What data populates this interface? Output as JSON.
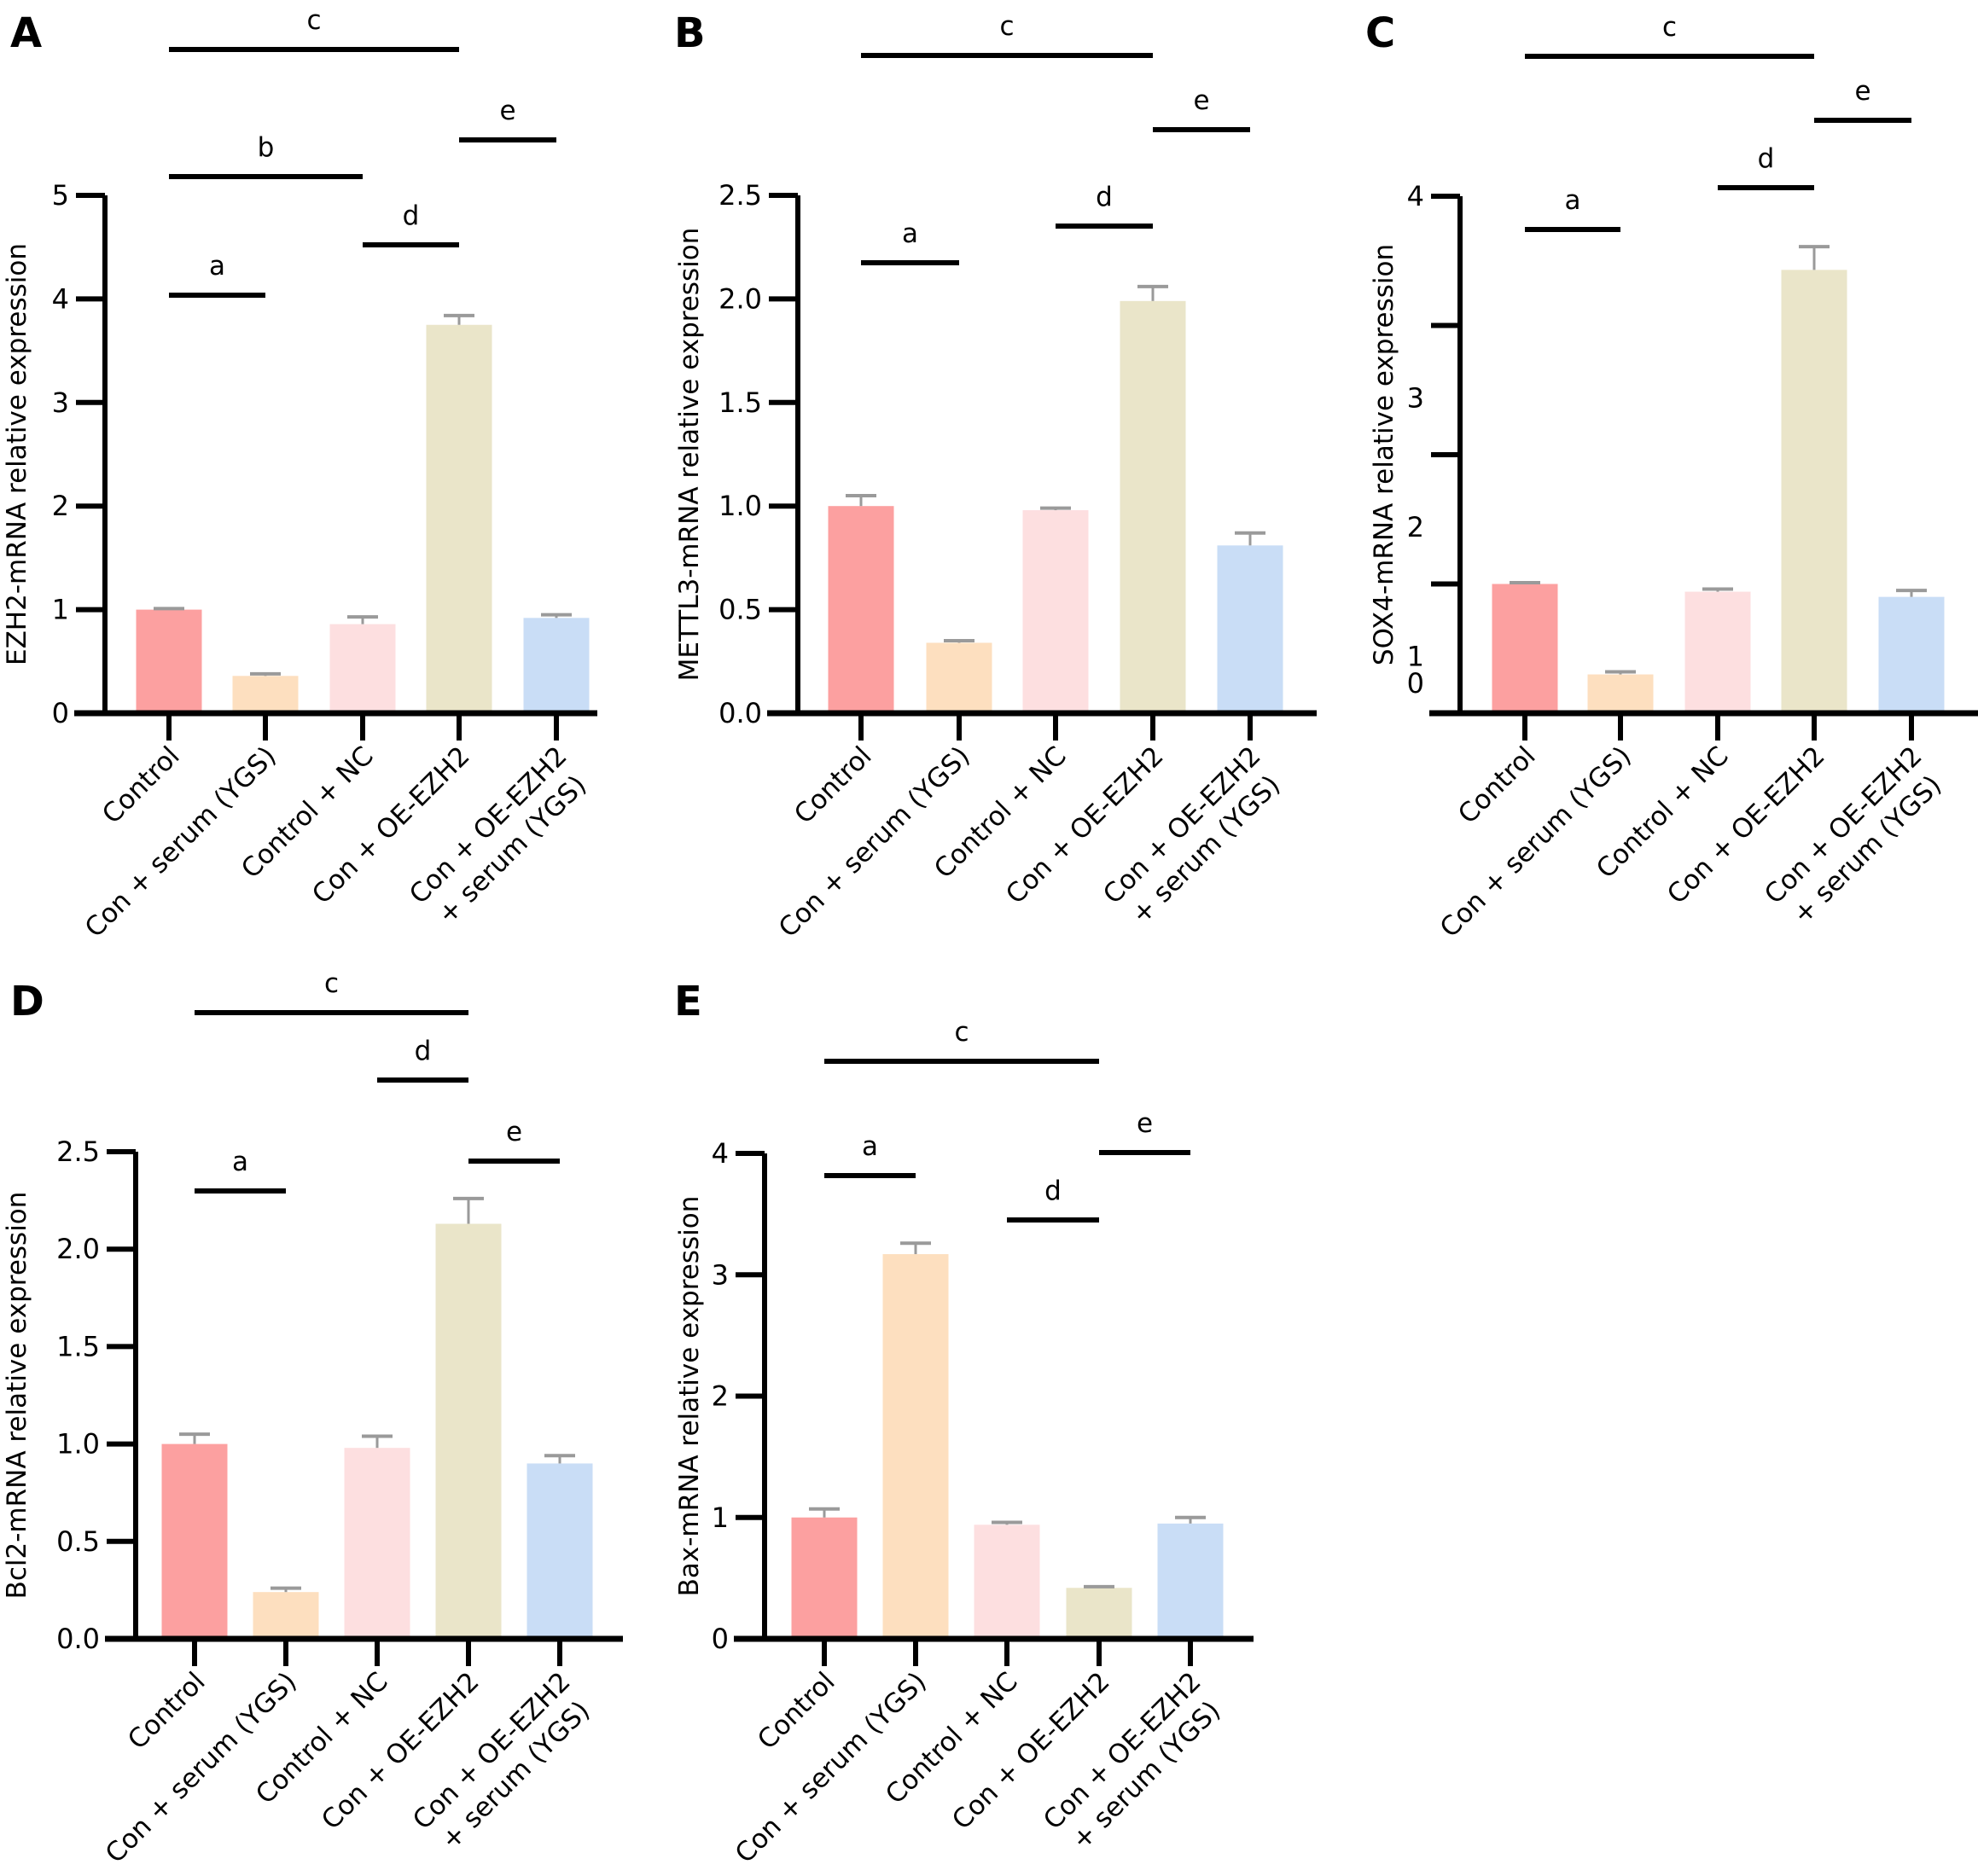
{
  "colors": {
    "bars": [
      "#FCA0A0",
      "#FDDFBF",
      "#FDDFE0",
      "#EAE5C9",
      "#C9DDF6"
    ],
    "error_bar": "#9A9A9A",
    "axis": "#000000"
  },
  "chart_data": [
    {
      "panel": "A",
      "type": "bar",
      "title": "",
      "xlabel": "",
      "ylabel": "EZH2-mRNA relative expression",
      "categories": [
        "Control",
        "Con + serum (YGS)",
        "Control + NC",
        "Con + OE-EZH2",
        "Con + OE-EZH2\n+ serum (YGS)"
      ],
      "values": [
        1.0,
        0.36,
        0.86,
        3.75,
        0.92
      ],
      "error_upper": [
        1.01,
        0.38,
        0.93,
        3.84,
        0.95
      ],
      "ylim": [
        0,
        5
      ],
      "yticks": [
        0,
        1,
        2,
        3,
        4,
        5
      ],
      "ytick_labels": [
        "0",
        "1",
        "2",
        "3",
        "4",
        "5"
      ],
      "grid": false,
      "significance": [
        {
          "label": "c",
          "from": 0,
          "to": 3,
          "level": "top"
        },
        {
          "label": "e",
          "from": 3,
          "to": 4
        },
        {
          "label": "b",
          "from": 0,
          "to": 2
        },
        {
          "label": "d",
          "from": 2,
          "to": 3
        },
        {
          "label": "a",
          "from": 0,
          "to": 1
        }
      ]
    },
    {
      "panel": "B",
      "type": "bar",
      "title": "",
      "xlabel": "",
      "ylabel": "METTL3-mRNA relative expression",
      "categories": [
        "Control",
        "Con + serum (YGS)",
        "Control + NC",
        "Con + OE-EZH2",
        "Con + OE-EZH2\n+ serum (YGS)"
      ],
      "values": [
        1.0,
        0.34,
        0.98,
        1.99,
        0.81
      ],
      "error_upper": [
        1.05,
        0.35,
        0.99,
        2.06,
        0.87
      ],
      "ylim": [
        0,
        2.5
      ],
      "yticks": [
        0,
        0.5,
        1.0,
        1.5,
        2.0,
        2.5
      ],
      "ytick_labels": [
        "0.0",
        "0.5",
        "1.0",
        "1.5",
        "2.0",
        "2.5"
      ],
      "grid": false,
      "significance": [
        {
          "label": "c",
          "from": 0,
          "to": 3
        },
        {
          "label": "e",
          "from": 3,
          "to": 4
        },
        {
          "label": "d",
          "from": 2,
          "to": 3
        },
        {
          "label": "a",
          "from": 0,
          "to": 1
        }
      ]
    },
    {
      "panel": "C",
      "type": "bar",
      "title": "",
      "xlabel": "",
      "ylabel": "SOX4-mRNA relative expression",
      "categories": [
        "Control",
        "Con + serum (YGS)",
        "Control + NC",
        "Con + OE-EZH2",
        "Con + OE-EZH2\n+ serum (YGS)"
      ],
      "values": [
        1.0,
        0.3,
        0.94,
        3.43,
        0.9
      ],
      "error_upper": [
        1.01,
        0.32,
        0.96,
        3.61,
        0.95
      ],
      "ylim": [
        0,
        4
      ],
      "yticks": [
        0,
        1,
        2,
        3,
        4
      ],
      "ytick_labels": [
        "0",
        "1",
        "2",
        "3",
        "4"
      ],
      "grid": false,
      "significance": [
        {
          "label": "c",
          "from": 0,
          "to": 3
        },
        {
          "label": "e",
          "from": 3,
          "to": 4
        },
        {
          "label": "d",
          "from": 2,
          "to": 3
        },
        {
          "label": "a",
          "from": 0,
          "to": 1
        }
      ]
    },
    {
      "panel": "D",
      "type": "bar",
      "title": "",
      "xlabel": "",
      "ylabel": "Bcl2-mRNA relative expression",
      "categories": [
        "Control",
        "Con + serum (YGS)",
        "Control + NC",
        "Con + OE-EZH2",
        "Con + OE-EZH2\n+ serum (YGS)"
      ],
      "values": [
        1.0,
        0.24,
        0.98,
        2.13,
        0.9
      ],
      "error_upper": [
        1.05,
        0.26,
        1.04,
        2.26,
        0.94
      ],
      "ylim": [
        0,
        2.5
      ],
      "yticks": [
        0,
        0.5,
        1.0,
        1.5,
        2.0,
        2.5
      ],
      "ytick_labels": [
        "0.0",
        "0.5",
        "1.0",
        "1.5",
        "2.0",
        "2.5"
      ],
      "grid": false,
      "significance": [
        {
          "label": "c",
          "from": 0,
          "to": 3
        },
        {
          "label": "d",
          "from": 2,
          "to": 3
        },
        {
          "label": "e",
          "from": 3,
          "to": 4
        },
        {
          "label": "a",
          "from": 0,
          "to": 1
        }
      ]
    },
    {
      "panel": "E",
      "type": "bar",
      "title": "",
      "xlabel": "",
      "ylabel": "Bax-mRNA relative expression",
      "categories": [
        "Control",
        "Con + serum (YGS)",
        "Control + NC",
        "Con + OE-EZH2",
        "Con + OE-EZH2\n+ serum (YGS)"
      ],
      "values": [
        1.0,
        3.17,
        0.94,
        0.42,
        0.95
      ],
      "error_upper": [
        1.07,
        3.26,
        0.96,
        0.43,
        1.0
      ],
      "ylim": [
        0,
        4
      ],
      "yticks": [
        0,
        1,
        2,
        3,
        4
      ],
      "ytick_labels": [
        "0",
        "1",
        "2",
        "3",
        "4"
      ],
      "grid": false,
      "significance": [
        {
          "label": "c",
          "from": 0,
          "to": 3
        },
        {
          "label": "e",
          "from": 3,
          "to": 4
        },
        {
          "label": "a",
          "from": 0,
          "to": 1
        },
        {
          "label": "d",
          "from": 2,
          "to": 3
        }
      ]
    }
  ]
}
